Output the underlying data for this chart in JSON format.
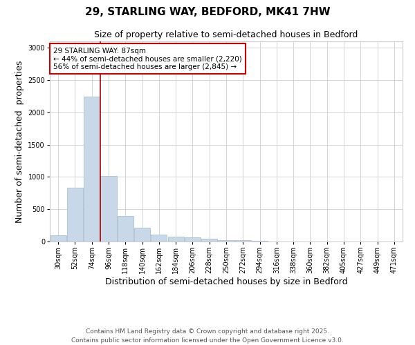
{
  "title": "29, STARLING WAY, BEDFORD, MK41 7HW",
  "subtitle": "Size of property relative to semi-detached houses in Bedford",
  "xlabel": "Distribution of semi-detached houses by size in Bedford",
  "ylabel": "Number of semi-detached  properties",
  "categories": [
    "30sqm",
    "52sqm",
    "74sqm",
    "96sqm",
    "118sqm",
    "140sqm",
    "162sqm",
    "184sqm",
    "206sqm",
    "228sqm",
    "250sqm",
    "272sqm",
    "294sqm",
    "316sqm",
    "338sqm",
    "360sqm",
    "382sqm",
    "405sqm",
    "427sqm",
    "449sqm",
    "471sqm"
  ],
  "values": [
    100,
    830,
    2250,
    1020,
    400,
    215,
    110,
    75,
    60,
    45,
    25,
    20,
    10,
    5,
    5,
    3,
    3,
    2,
    2,
    0,
    0
  ],
  "bar_color": "#c8d8e8",
  "bar_edge_color": "#a0b8cc",
  "vline_x_index": 2,
  "vline_color": "#aa0000",
  "annotation_text": "29 STARLING WAY: 87sqm\n← 44% of semi-detached houses are smaller (2,220)\n56% of semi-detached houses are larger (2,845) →",
  "annotation_box_color": "#ffffff",
  "annotation_box_edge_color": "#cc0000",
  "ylim": [
    0,
    3100
  ],
  "yticks": [
    0,
    500,
    1000,
    1500,
    2000,
    2500,
    3000
  ],
  "footer": "Contains HM Land Registry data © Crown copyright and database right 2025.\nContains public sector information licensed under the Open Government Licence v3.0.",
  "background_color": "#ffffff",
  "grid_color": "#cccccc",
  "title_fontsize": 11,
  "subtitle_fontsize": 9,
  "axis_label_fontsize": 9,
  "tick_fontsize": 7,
  "annotation_fontsize": 7.5,
  "footer_fontsize": 6.5
}
